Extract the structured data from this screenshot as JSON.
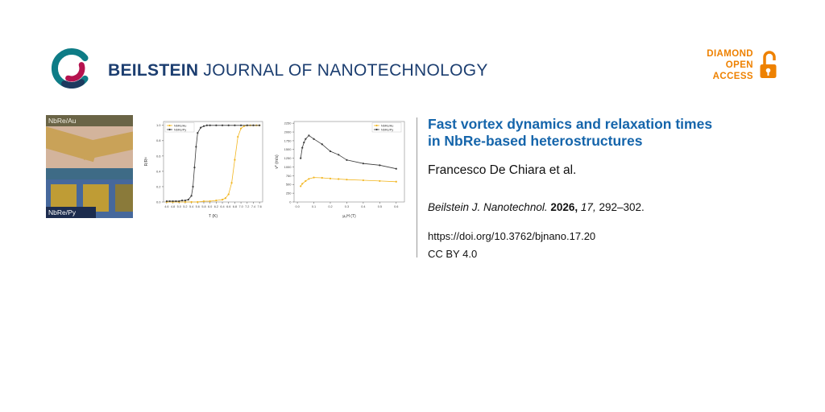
{
  "header": {
    "brand_bold": "BEILSTEIN",
    "brand_rest": "JOURNAL OF NANOTECHNOLOGY",
    "brand_color": "#1c3e70",
    "open_access": {
      "lines": [
        "DIAMOND",
        "OPEN",
        "ACCESS"
      ],
      "color": "#ee8100"
    }
  },
  "figure": {
    "micrograph": {
      "label_top": "NbRe/Au",
      "label_bottom": "NbRe/Py"
    }
  },
  "article": {
    "title_line1": "Fast vortex dynamics and relaxation times",
    "title_line2": "in NbRe-based heterostructures",
    "title_color": "#1565ab",
    "authors": "Francesco De Chiara et al.",
    "citation": {
      "journal": "Beilstein J. Nanotechnol.",
      "year": "2026,",
      "volume": "17,",
      "pages": "292–302."
    },
    "doi": "https://doi.org/10.3762/bjnano.17.20",
    "license": "CC BY 4.0"
  },
  "chart_data": [
    {
      "type": "line",
      "title": "",
      "xlabel": "T (K)",
      "ylabel": "R/Rᴺ",
      "xlim": [
        4.5,
        7.7
      ],
      "ylim": [
        0,
        1.05
      ],
      "xticks": [
        "4.6",
        "4.8",
        "5.0",
        "5.2",
        "5.4",
        "5.6",
        "5.8",
        "6.0",
        "6.2",
        "6.4",
        "6.6",
        "6.8",
        "7.0",
        "7.2",
        "7.4",
        "7.6"
      ],
      "yticks": [
        "0.0",
        "0.2",
        "0.4",
        "0.6",
        "0.8",
        "1.0"
      ],
      "legend_pos": "tl",
      "grid": false,
      "series": [
        {
          "name": "NbRe/Au",
          "color": "#f2b620",
          "x": [
            4.6,
            4.8,
            5.0,
            5.2,
            5.4,
            5.6,
            5.8,
            6.0,
            6.2,
            6.4,
            6.5,
            6.6,
            6.7,
            6.8,
            6.9,
            7.0,
            7.1,
            7.2,
            7.3,
            7.4,
            7.5,
            7.6
          ],
          "y": [
            0,
            0,
            0,
            0,
            0,
            0,
            0.01,
            0.01,
            0.02,
            0.03,
            0.05,
            0.1,
            0.25,
            0.55,
            0.85,
            0.96,
            0.99,
            1.0,
            1.0,
            1.0,
            1.0,
            1.0
          ]
        },
        {
          "name": "NbRe/Py",
          "color": "#3a3a3a",
          "x": [
            4.6,
            4.7,
            4.8,
            4.9,
            5.0,
            5.1,
            5.2,
            5.3,
            5.4,
            5.45,
            5.5,
            5.55,
            5.6,
            5.7,
            5.8,
            5.9,
            6.0,
            6.2,
            6.4,
            6.6,
            6.8,
            7.0,
            7.2,
            7.4,
            7.6
          ],
          "y": [
            0.01,
            0.01,
            0.01,
            0.01,
            0.01,
            0.02,
            0.02,
            0.03,
            0.08,
            0.2,
            0.45,
            0.72,
            0.9,
            0.97,
            0.99,
            1.0,
            1.0,
            1.0,
            1.0,
            1.0,
            1.0,
            1.0,
            1.0,
            1.0,
            1.0
          ]
        }
      ]
    },
    {
      "type": "line",
      "title": "",
      "xlabel": "μ₀H (T)",
      "ylabel": "v* (m/s)",
      "xlim": [
        -0.02,
        0.65
      ],
      "ylim": [
        0,
        2300
      ],
      "xticks": [
        "0.0",
        "0.1",
        "0.2",
        "0.3",
        "0.4",
        "0.5",
        "0.6"
      ],
      "yticks": [
        "0",
        "250",
        "500",
        "750",
        "1000",
        "1250",
        "1500",
        "1750",
        "2000",
        "2250"
      ],
      "legend_pos": "tr",
      "grid": false,
      "series": [
        {
          "name": "NbRe/Au",
          "color": "#f2b620",
          "x": [
            0.02,
            0.03,
            0.05,
            0.07,
            0.1,
            0.15,
            0.2,
            0.25,
            0.3,
            0.4,
            0.5,
            0.6
          ],
          "y": [
            450,
            520,
            600,
            660,
            700,
            690,
            670,
            655,
            640,
            620,
            600,
            580
          ]
        },
        {
          "name": "NbRe/Py",
          "color": "#3a3a3a",
          "x": [
            0.02,
            0.03,
            0.04,
            0.05,
            0.07,
            0.1,
            0.15,
            0.2,
            0.25,
            0.3,
            0.4,
            0.5,
            0.6
          ],
          "y": [
            1250,
            1550,
            1700,
            1800,
            1900,
            1800,
            1650,
            1450,
            1350,
            1200,
            1100,
            1050,
            950
          ]
        }
      ]
    }
  ]
}
